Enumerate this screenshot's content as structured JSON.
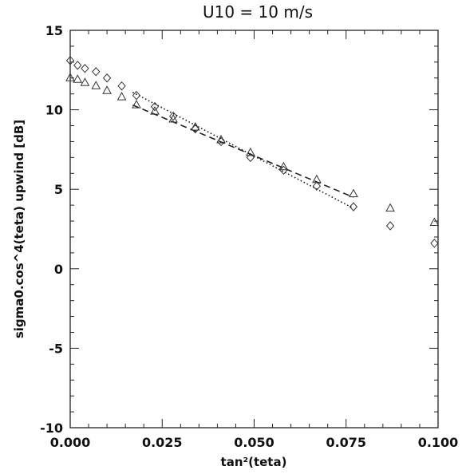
{
  "chart_data": {
    "type": "scatter",
    "title": "U10 = 10 m/s",
    "xlabel": "tan²(teta)",
    "ylabel": "sigma0.cos^4(teta) upwind [dB]",
    "xlim": [
      0.0,
      0.1
    ],
    "ylim": [
      -10,
      15
    ],
    "x_ticks": [
      "0.000",
      "0.025",
      "0.050",
      "0.075",
      "0.100"
    ],
    "y_ticks": [
      "-10",
      "-5",
      "0",
      "5",
      "10",
      "15"
    ],
    "grid": false,
    "legend": "none",
    "series": [
      {
        "marker": "diamond",
        "x": [
          0.0,
          0.002,
          0.004,
          0.007,
          0.01,
          0.014,
          0.018,
          0.023,
          0.028,
          0.034,
          0.041,
          0.049,
          0.058,
          0.067,
          0.077,
          0.087,
          0.099
        ],
        "y": [
          13.1,
          12.8,
          12.6,
          12.4,
          12.0,
          11.5,
          10.9,
          10.2,
          9.6,
          8.8,
          8.0,
          7.0,
          6.2,
          5.2,
          3.9,
          2.7,
          1.6
        ]
      },
      {
        "marker": "triangle",
        "x": [
          0.0,
          0.002,
          0.004,
          0.007,
          0.01,
          0.014,
          0.018,
          0.023,
          0.028,
          0.034,
          0.041,
          0.049,
          0.058,
          0.067,
          0.077,
          0.087,
          0.099
        ],
        "y": [
          12.0,
          11.9,
          11.7,
          11.5,
          11.2,
          10.8,
          10.3,
          9.9,
          9.4,
          8.9,
          8.1,
          7.3,
          6.4,
          5.6,
          4.7,
          3.8,
          2.9
        ]
      },
      {
        "line_style": "dotted",
        "x": [
          0.017,
          0.077
        ],
        "y": [
          11.1,
          3.8
        ]
      },
      {
        "line_style": "dashed",
        "x": [
          0.017,
          0.077
        ],
        "y": [
          10.3,
          4.5
        ]
      }
    ]
  }
}
